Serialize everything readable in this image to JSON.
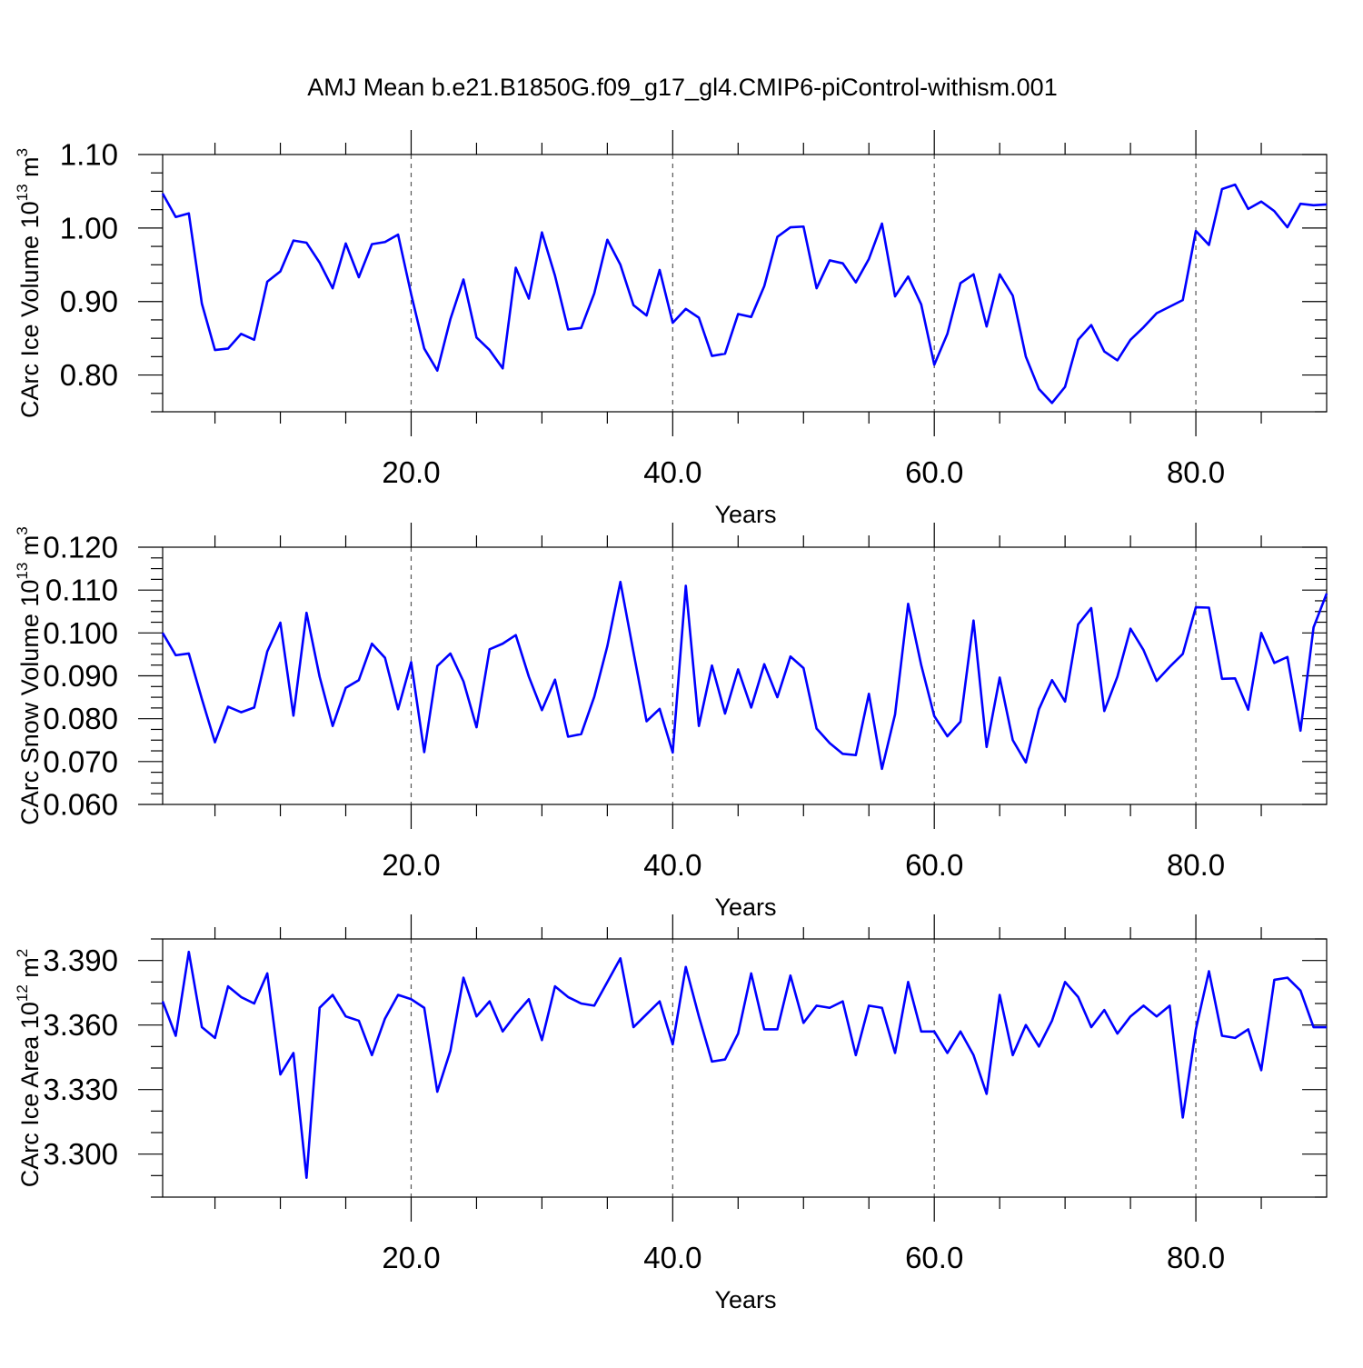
{
  "title": "AMJ Mean b.e21.B1850G.f09_g17_gl4.CMIP6-piControl-withism.001",
  "colors": {
    "series": "#0000ff",
    "axis": "#000000",
    "grid": "#555555"
  },
  "chart_data": [
    {
      "type": "line",
      "ylabel": "CArc Ice Volume 10",
      "ylabel_exp": "13",
      "ylabel_unit": "m",
      "ylabel_unit_exp": "3",
      "xlabel": "Years",
      "xlim": [
        1,
        90
      ],
      "ylim": [
        0.75,
        1.1
      ],
      "yticks": [
        0.8,
        0.9,
        1.0,
        1.1
      ],
      "ytick_labels": [
        "0.80",
        "0.90",
        "1.00",
        "1.10"
      ],
      "yminor": 0.025,
      "xticks": [
        20,
        40,
        60,
        80
      ],
      "xtick_labels": [
        "20.0",
        "40.0",
        "60.0",
        "80.0"
      ],
      "grid_x": true,
      "series": [
        {
          "x": [
            1,
            2,
            3,
            4,
            5,
            6,
            7,
            8,
            9,
            10,
            11,
            12,
            13,
            14,
            15,
            16,
            17,
            18,
            19,
            20,
            21,
            22,
            23,
            24,
            25,
            26,
            27,
            28,
            29,
            30,
            31,
            32,
            33,
            34,
            35,
            36,
            37,
            38,
            39,
            40,
            41,
            42,
            43,
            44,
            45,
            46,
            47,
            48,
            49,
            50,
            51,
            52,
            53,
            54,
            55,
            56,
            57,
            58,
            59,
            60,
            61,
            62,
            63,
            64,
            65,
            66,
            67,
            68,
            69,
            70,
            71,
            72,
            73,
            74,
            75,
            76,
            77,
            78,
            79,
            80,
            81,
            82,
            83,
            84,
            85,
            86,
            87,
            88,
            89,
            90
          ],
          "values": [
            1.047,
            1.015,
            1.02,
            0.897,
            0.834,
            0.836,
            0.856,
            0.848,
            0.927,
            0.941,
            0.983,
            0.98,
            0.953,
            0.918,
            0.979,
            0.933,
            0.978,
            0.981,
            0.991,
            0.91,
            0.836,
            0.806,
            0.876,
            0.93,
            0.851,
            0.834,
            0.809,
            0.946,
            0.904,
            0.994,
            0.935,
            0.862,
            0.864,
            0.911,
            0.984,
            0.95,
            0.895,
            0.881,
            0.943,
            0.871,
            0.89,
            0.878,
            0.826,
            0.829,
            0.883,
            0.879,
            0.921,
            0.988,
            1.001,
            1.002,
            0.918,
            0.956,
            0.952,
            0.926,
            0.958,
            1.006,
            0.907,
            0.934,
            0.896,
            0.814,
            0.856,
            0.925,
            0.937,
            0.866,
            0.937,
            0.908,
            0.825,
            0.781,
            0.762,
            0.784,
            0.848,
            0.868,
            0.832,
            0.82,
            0.848,
            0.865,
            0.884,
            0.893,
            0.902,
            0.996,
            0.977,
            1.053,
            1.059,
            1.026,
            1.036,
            1.023,
            1.001,
            1.033,
            1.031,
            1.032
          ]
        }
      ]
    },
    {
      "type": "line",
      "ylabel": "CArc Snow Volume 10",
      "ylabel_exp": "13",
      "ylabel_unit": "m",
      "ylabel_unit_exp": "3",
      "xlabel": "Years",
      "xlim": [
        1,
        90
      ],
      "ylim": [
        0.06,
        0.12
      ],
      "yticks": [
        0.06,
        0.07,
        0.08,
        0.09,
        0.1,
        0.11,
        0.12
      ],
      "ytick_labels": [
        "0.060",
        "0.070",
        "0.080",
        "0.090",
        "0.100",
        "0.110",
        "0.120"
      ],
      "yminor": 0.0025,
      "xticks": [
        20,
        40,
        60,
        80
      ],
      "xtick_labels": [
        "20.0",
        "40.0",
        "60.0",
        "80.0"
      ],
      "grid_x": true,
      "series": [
        {
          "x": [
            1,
            2,
            3,
            4,
            5,
            6,
            7,
            8,
            9,
            10,
            11,
            12,
            13,
            14,
            15,
            16,
            17,
            18,
            19,
            20,
            21,
            22,
            23,
            24,
            25,
            26,
            27,
            28,
            29,
            30,
            31,
            32,
            33,
            34,
            35,
            36,
            37,
            38,
            39,
            40,
            41,
            42,
            43,
            44,
            45,
            46,
            47,
            48,
            49,
            50,
            51,
            52,
            53,
            54,
            55,
            56,
            57,
            58,
            59,
            60,
            61,
            62,
            63,
            64,
            65,
            66,
            67,
            68,
            69,
            70,
            71,
            72,
            73,
            74,
            75,
            76,
            77,
            78,
            79,
            80,
            81,
            82,
            83,
            84,
            85,
            86,
            87,
            88,
            89,
            90
          ],
          "values": [
            0.1,
            0.0948,
            0.0952,
            0.0846,
            0.0745,
            0.0828,
            0.0815,
            0.0826,
            0.0957,
            0.1024,
            0.0807,
            0.1047,
            0.0898,
            0.0783,
            0.0872,
            0.089,
            0.0975,
            0.0942,
            0.0822,
            0.0932,
            0.0722,
            0.0923,
            0.0952,
            0.0887,
            0.078,
            0.0962,
            0.0975,
            0.0995,
            0.0898,
            0.082,
            0.0891,
            0.0758,
            0.0764,
            0.0851,
            0.0969,
            0.1119,
            0.0955,
            0.0794,
            0.0823,
            0.0721,
            0.111,
            0.0783,
            0.0924,
            0.0812,
            0.0915,
            0.0826,
            0.0927,
            0.085,
            0.0945,
            0.0918,
            0.0777,
            0.0743,
            0.0718,
            0.0715,
            0.0858,
            0.0683,
            0.081,
            0.1068,
            0.0925,
            0.0806,
            0.0759,
            0.0793,
            0.1029,
            0.0734,
            0.0896,
            0.075,
            0.0698,
            0.0822,
            0.089,
            0.084,
            0.102,
            0.1058,
            0.0818,
            0.0898,
            0.101,
            0.096,
            0.0888,
            0.0921,
            0.0951,
            0.106,
            0.1059,
            0.0893,
            0.0894,
            0.0821,
            0.1,
            0.093,
            0.0944,
            0.0772,
            0.1013,
            0.1092
          ]
        }
      ]
    },
    {
      "type": "line",
      "ylabel": "CArc Ice Area 10",
      "ylabel_exp": "12",
      "ylabel_unit": "m",
      "ylabel_unit_exp": "2",
      "xlabel": "Years",
      "xlim": [
        1,
        90
      ],
      "ylim": [
        3.28,
        3.4
      ],
      "yticks": [
        3.3,
        3.33,
        3.36,
        3.39
      ],
      "ytick_labels": [
        "3.300",
        "3.330",
        "3.360",
        "3.390"
      ],
      "yminor": 0.01,
      "xticks": [
        20,
        40,
        60,
        80
      ],
      "xtick_labels": [
        "20.0",
        "40.0",
        "60.0",
        "80.0"
      ],
      "grid_x": true,
      "series": [
        {
          "x": [
            1,
            2,
            3,
            4,
            5,
            6,
            7,
            8,
            9,
            10,
            11,
            12,
            13,
            14,
            15,
            16,
            17,
            18,
            19,
            20,
            21,
            22,
            23,
            24,
            25,
            26,
            27,
            28,
            29,
            30,
            31,
            32,
            33,
            34,
            35,
            36,
            37,
            38,
            39,
            40,
            41,
            42,
            43,
            44,
            45,
            46,
            47,
            48,
            49,
            50,
            51,
            52,
            53,
            54,
            55,
            56,
            57,
            58,
            59,
            60,
            61,
            62,
            63,
            64,
            65,
            66,
            67,
            68,
            69,
            70,
            71,
            72,
            73,
            74,
            75,
            76,
            77,
            78,
            79,
            80,
            81,
            82,
            83,
            84,
            85,
            86,
            87,
            88,
            89,
            90
          ],
          "values": [
            3.371,
            3.355,
            3.394,
            3.359,
            3.354,
            3.378,
            3.373,
            3.37,
            3.384,
            3.337,
            3.347,
            3.289,
            3.368,
            3.374,
            3.364,
            3.362,
            3.346,
            3.363,
            3.374,
            3.372,
            3.368,
            3.329,
            3.348,
            3.382,
            3.364,
            3.371,
            3.357,
            3.365,
            3.372,
            3.353,
            3.378,
            3.373,
            3.37,
            3.369,
            3.38,
            3.391,
            3.359,
            3.365,
            3.371,
            3.351,
            3.387,
            3.364,
            3.343,
            3.344,
            3.356,
            3.384,
            3.358,
            3.358,
            3.383,
            3.361,
            3.369,
            3.368,
            3.371,
            3.346,
            3.369,
            3.368,
            3.347,
            3.38,
            3.357,
            3.357,
            3.347,
            3.357,
            3.346,
            3.328,
            3.374,
            3.346,
            3.36,
            3.35,
            3.362,
            3.38,
            3.373,
            3.359,
            3.367,
            3.356,
            3.364,
            3.369,
            3.364,
            3.369,
            3.317,
            3.358,
            3.385,
            3.355,
            3.354,
            3.358,
            3.339,
            3.381,
            3.382,
            3.376,
            3.359,
            3.359
          ]
        }
      ]
    }
  ]
}
